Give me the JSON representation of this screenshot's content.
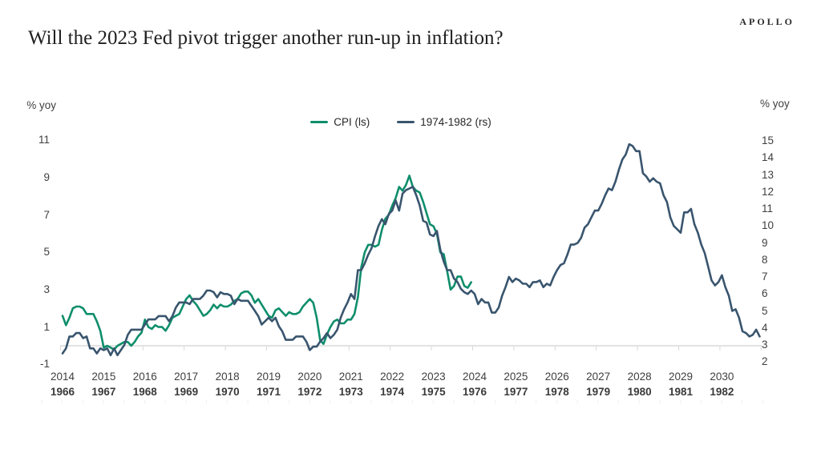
{
  "header": {
    "brand": "APOLLO",
    "title": "Will the 2023 Fed pivot trigger another run-up in inflation?"
  },
  "chart_data": {
    "type": "line",
    "title": "Will the 2023 Fed pivot trigger another run-up in inflation?",
    "grid": "off",
    "legend_position": "top-center",
    "left_axis": {
      "unit": "% yoy",
      "ticks": [
        11,
        9,
        7,
        5,
        3,
        1,
        -1
      ],
      "range": [
        -1,
        11
      ]
    },
    "right_axis": {
      "unit": "% yoy",
      "ticks": [
        15,
        14,
        13,
        12,
        11,
        10,
        9,
        8,
        7,
        6,
        5,
        4,
        3,
        2
      ],
      "range": [
        2,
        15
      ]
    },
    "x_axis": {
      "primary_years": [
        "2014",
        "2015",
        "2016",
        "2017",
        "2018",
        "2019",
        "2020",
        "2021",
        "2022",
        "2023",
        "2024",
        "2025",
        "2026",
        "2027",
        "2028",
        "2029",
        "2030"
      ],
      "secondary_years": [
        "1966",
        "1967",
        "1968",
        "1969",
        "1970",
        "1971",
        "1972",
        "1973",
        "1974",
        "1975",
        "1976",
        "1977",
        "1978",
        "1979",
        "1980",
        "1981",
        "1982"
      ]
    },
    "colors": {
      "axis_line": "#d9d9d9",
      "minor_tick": "#eeeef2",
      "tick_text": "#3f3f3f"
    },
    "series": [
      {
        "name": "CPI (ls)",
        "axis": "left",
        "color": "#0f8e6c",
        "frequency": "monthly",
        "start": "2014-01",
        "values": [
          1.6,
          1.1,
          1.5,
          2.0,
          2.1,
          2.1,
          2.0,
          1.7,
          1.7,
          1.7,
          1.3,
          0.8,
          -0.1,
          0.0,
          -0.1,
          -0.2,
          0.0,
          0.1,
          0.2,
          0.2,
          0.0,
          0.2,
          0.5,
          0.7,
          1.4,
          1.0,
          0.9,
          1.1,
          1.0,
          1.0,
          0.8,
          1.1,
          1.5,
          1.6,
          1.7,
          2.1,
          2.5,
          2.7,
          2.4,
          2.2,
          1.9,
          1.6,
          1.7,
          1.9,
          2.2,
          2.0,
          2.2,
          2.1,
          2.1,
          2.2,
          2.4,
          2.5,
          2.8,
          2.9,
          2.9,
          2.7,
          2.3,
          2.5,
          2.2,
          1.9,
          1.6,
          1.5,
          1.9,
          2.0,
          1.8,
          1.6,
          1.8,
          1.7,
          1.7,
          1.8,
          2.1,
          2.3,
          2.5,
          2.3,
          1.5,
          0.3,
          0.1,
          0.6,
          1.0,
          1.3,
          1.4,
          1.2,
          1.2,
          1.4,
          1.4,
          1.7,
          2.6,
          4.2,
          5.0,
          5.4,
          5.4,
          5.3,
          5.4,
          6.2,
          6.8,
          7.0,
          7.5,
          7.9,
          8.5,
          8.3,
          8.6,
          9.1,
          8.5,
          8.3,
          8.2,
          7.7,
          7.1,
          6.5,
          6.4,
          6.0,
          5.0,
          4.9,
          4.0,
          3.0,
          3.2,
          3.7,
          3.7,
          3.2,
          3.1,
          3.4
        ]
      },
      {
        "name": "1974-1982 (rs)",
        "axis": "right",
        "color": "#39556e",
        "frequency": "monthly",
        "start": "1966-06",
        "values": [
          2.5,
          2.8,
          3.5,
          3.5,
          3.7,
          3.7,
          3.4,
          3.5,
          2.8,
          2.8,
          2.5,
          2.8,
          2.7,
          2.8,
          2.4,
          2.8,
          2.4,
          2.7,
          3.0,
          3.6,
          3.9,
          3.9,
          3.9,
          3.9,
          4.2,
          4.5,
          4.5,
          4.5,
          4.7,
          4.7,
          4.7,
          4.4,
          4.7,
          5.2,
          5.5,
          5.5,
          5.5,
          5.4,
          5.7,
          5.7,
          5.7,
          5.9,
          6.2,
          6.2,
          6.1,
          5.8,
          6.1,
          6.0,
          6.0,
          5.9,
          5.4,
          5.7,
          5.6,
          5.6,
          5.6,
          5.3,
          5.0,
          4.7,
          4.2,
          4.4,
          4.6,
          4.4,
          4.6,
          4.1,
          3.8,
          3.3,
          3.3,
          3.3,
          3.5,
          3.5,
          3.5,
          3.2,
          2.7,
          2.9,
          2.9,
          3.2,
          3.4,
          3.7,
          3.4,
          3.6,
          3.9,
          4.6,
          5.1,
          5.5,
          6.0,
          5.7,
          7.4,
          7.4,
          7.8,
          8.3,
          8.7,
          9.4,
          10.0,
          10.4,
          10.1,
          10.7,
          10.9,
          11.5,
          10.9,
          11.9,
          12.1,
          12.2,
          12.3,
          11.8,
          11.2,
          10.3,
          10.2,
          9.5,
          9.4,
          9.7,
          8.6,
          7.9,
          7.4,
          7.4,
          6.9,
          6.7,
          6.3,
          6.1,
          6.0,
          6.2,
          6.0,
          5.4,
          5.7,
          5.5,
          5.5,
          4.9,
          4.9,
          5.2,
          5.9,
          6.4,
          7.0,
          6.7,
          6.9,
          6.8,
          6.6,
          6.6,
          6.4,
          6.7,
          6.7,
          6.8,
          6.4,
          6.6,
          6.5,
          7.0,
          7.4,
          7.7,
          7.8,
          8.3,
          8.9,
          8.9,
          9.0,
          9.3,
          9.9,
          10.1,
          10.5,
          10.9,
          10.9,
          11.3,
          11.8,
          12.2,
          12.1,
          12.6,
          13.3,
          13.9,
          14.2,
          14.8,
          14.7,
          14.4,
          14.4,
          13.1,
          12.9,
          12.6,
          12.8,
          12.6,
          12.5,
          11.8,
          11.4,
          10.5,
          10.0,
          9.8,
          9.6,
          10.8,
          10.8,
          11.0,
          10.1,
          9.6,
          8.9,
          8.4,
          7.6,
          6.8,
          6.5,
          6.7,
          7.1,
          6.4,
          5.9,
          5.0,
          5.1,
          4.6,
          3.8,
          3.7,
          3.5,
          3.6,
          3.9,
          3.5
        ]
      }
    ]
  }
}
